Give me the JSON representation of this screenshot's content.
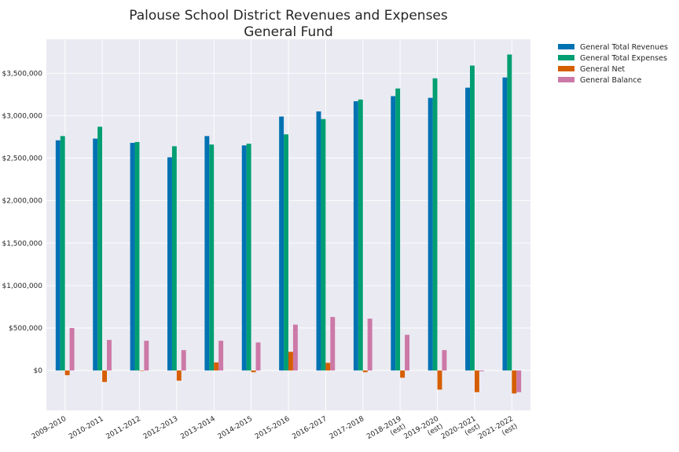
{
  "chart_data": {
    "type": "bar",
    "title": [
      "Palouse School District Revenues and Expenses",
      "General Fund"
    ],
    "xlabel": "",
    "ylabel": "",
    "categories": [
      [
        "2009-2010"
      ],
      [
        "2010-2011"
      ],
      [
        "2011-2012"
      ],
      [
        "2012-2013"
      ],
      [
        "2013-2014"
      ],
      [
        "2014-2015"
      ],
      [
        "2015-2016"
      ],
      [
        "2016-2017"
      ],
      [
        "2017-2018"
      ],
      [
        "2018-2019",
        "(est)"
      ],
      [
        "2019-2020",
        "(est)"
      ],
      [
        "2020-2021",
        "(est)"
      ],
      [
        "2021-2022",
        "(est)"
      ]
    ],
    "series": [
      {
        "name": "General Total Revenues",
        "color": "#0072b2",
        "values": [
          2710000,
          2730000,
          2680000,
          2510000,
          2760000,
          2650000,
          2990000,
          3050000,
          3170000,
          3230000,
          3210000,
          3330000,
          3450000
        ]
      },
      {
        "name": "General Total Expenses",
        "color": "#009e73",
        "values": [
          2760000,
          2870000,
          2690000,
          2640000,
          2660000,
          2670000,
          2780000,
          2960000,
          3190000,
          3320000,
          3440000,
          3590000,
          3720000
        ]
      },
      {
        "name": "General Net",
        "color": "#d55e00",
        "values": [
          -55000,
          -135000,
          -5000,
          -120000,
          95000,
          -20000,
          220000,
          90000,
          -20000,
          -85000,
          -225000,
          -255000,
          -270000
        ]
      },
      {
        "name": "General Balance",
        "color": "#cc79a7",
        "values": [
          500000,
          360000,
          350000,
          240000,
          350000,
          330000,
          540000,
          630000,
          610000,
          420000,
          240000,
          -10000,
          -255000
        ]
      }
    ],
    "yticks": [
      0,
      500000,
      1000000,
      1500000,
      2000000,
      2500000,
      3000000,
      3500000
    ],
    "ytick_labels": [
      "$0",
      "$500,000",
      "$1,000,000",
      "$1,500,000",
      "$2,000,000",
      "$2,500,000",
      "$3,000,000",
      "$3,500,000"
    ],
    "ylim": [
      -470000,
      3900000
    ],
    "grid": true,
    "background": "#eaeaf2",
    "legend_position": "outside-top-right"
  }
}
